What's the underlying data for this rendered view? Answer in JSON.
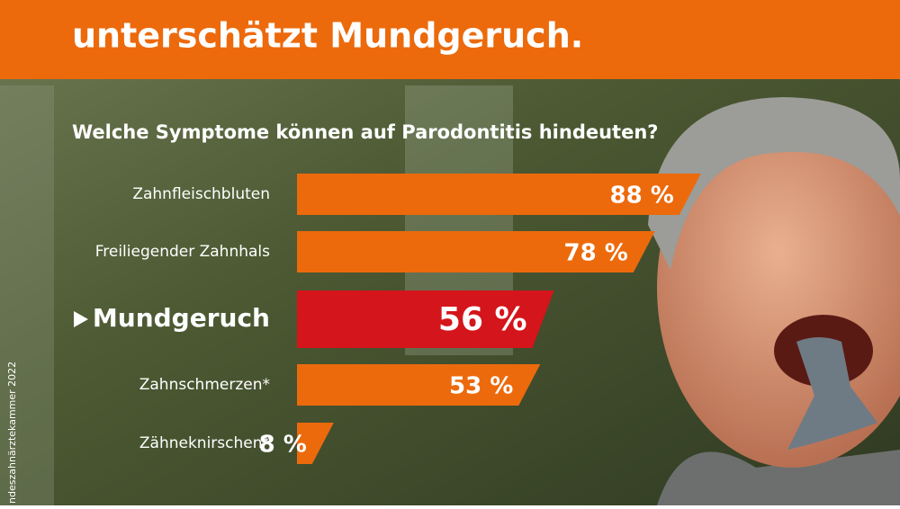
{
  "chart_data": {
    "type": "bar",
    "title": "unterschätzt Mundgeruch.",
    "subtitle": "Welche Symptome können auf Parodontitis hindeuten?",
    "source": "ndeszahnärztekammer 2022",
    "categories": [
      "Zahnfleischbluten",
      "Freiliegender Zahnhals",
      "Mundgeruch",
      "Zahnschmerzen*",
      "Zähneknirschen*"
    ],
    "values": [
      88,
      78,
      56,
      53,
      8
    ],
    "value_labels": [
      "88 %",
      "78 %",
      "56 %",
      "53 %",
      "8 %"
    ],
    "color": "#ec6a0c",
    "highlight_color": "#d4151b",
    "highlight": 2
  }
}
